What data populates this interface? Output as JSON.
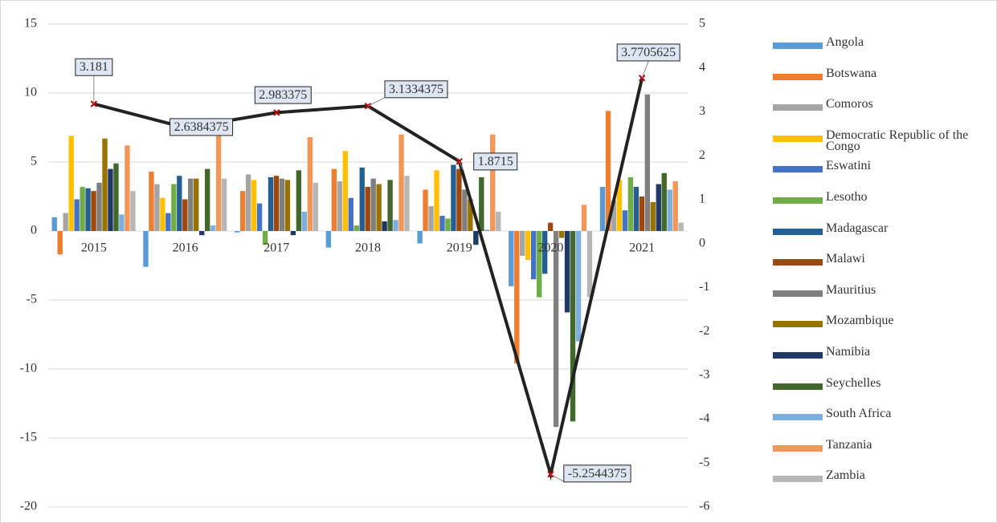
{
  "chart_data": {
    "type": "bar",
    "categories": [
      "2015",
      "2016",
      "2017",
      "2018",
      "2019",
      "2020",
      "2021"
    ],
    "ylim": [
      -20,
      15
    ],
    "yticks": [
      -20,
      -15,
      -10,
      -5,
      0,
      5,
      10,
      15
    ],
    "y2lim": [
      -6,
      5
    ],
    "y2ticks": [
      -6,
      -5,
      -4,
      -3,
      -2,
      -1,
      0,
      1,
      2,
      3,
      4,
      5
    ],
    "series": [
      {
        "name": "Angola",
        "color": "#5b9bd5",
        "values": [
          1.0,
          -2.6,
          -0.1,
          -1.2,
          -0.9,
          -4.0,
          3.2
        ]
      },
      {
        "name": "Botswana",
        "color": "#ed7d31",
        "values": [
          -1.7,
          4.3,
          2.9,
          4.5,
          3.0,
          -9.6,
          8.7
        ]
      },
      {
        "name": "Comoros",
        "color": "#a5a5a5",
        "values": [
          1.3,
          3.4,
          4.1,
          3.6,
          1.8,
          -1.8,
          2.2
        ]
      },
      {
        "name": "Democratic Republic of the Congo",
        "color": "#ffc000",
        "values": [
          6.9,
          2.4,
          3.7,
          5.8,
          4.4,
          -2.1,
          3.7
        ]
      },
      {
        "name": "Eswatini",
        "color": "#4472c4",
        "values": [
          2.3,
          1.3,
          2.0,
          2.4,
          1.1,
          -3.5,
          1.5
        ]
      },
      {
        "name": "Lesotho",
        "color": "#70ad47",
        "values": [
          3.2,
          3.4,
          -1.0,
          0.4,
          0.9,
          -4.8,
          3.9
        ]
      },
      {
        "name": "Madagascar",
        "color": "#255e91",
        "values": [
          3.1,
          4.0,
          3.9,
          4.6,
          4.8,
          -3.1,
          3.2
        ]
      },
      {
        "name": "Malawi",
        "color": "#9e480e",
        "values": [
          2.9,
          2.3,
          4.0,
          3.2,
          4.5,
          0.6,
          2.5
        ]
      },
      {
        "name": "Mauritius",
        "color": "#7f7f7f",
        "values": [
          3.5,
          3.8,
          3.8,
          3.8,
          3.0,
          -14.2,
          9.9
        ]
      },
      {
        "name": "Mozambique",
        "color": "#997300",
        "values": [
          6.7,
          3.8,
          3.7,
          3.4,
          2.3,
          -0.5,
          2.1
        ]
      },
      {
        "name": "Namibia",
        "color": "#203864",
        "values": [
          4.5,
          -0.3,
          -0.3,
          0.7,
          -1.0,
          -5.9,
          3.4
        ]
      },
      {
        "name": "Seychelles",
        "color": "#43682b",
        "values": [
          4.9,
          4.5,
          4.4,
          3.7,
          3.9,
          -13.8,
          4.2
        ]
      },
      {
        "name": "South Africa",
        "color": "#7cafdd",
        "values": [
          1.2,
          0.4,
          1.4,
          0.8,
          0.1,
          -8.0,
          3.0
        ]
      },
      {
        "name": "Tanzania",
        "color": "#f1975a",
        "values": [
          6.2,
          6.9,
          6.8,
          7.0,
          7.0,
          1.9,
          3.6
        ]
      },
      {
        "name": "Zambia",
        "color": "#b7b7b7",
        "values": [
          2.9,
          3.8,
          3.5,
          4.0,
          1.4,
          -4.8,
          0.6
        ]
      },
      {
        "type": "line",
        "axis": "y2",
        "color": "#222222",
        "marker_color": "#c00000",
        "values": [
          3.181,
          2.6384375,
          2.983375,
          3.1334375,
          1.8715,
          -5.2544375,
          3.7705625
        ]
      }
    ]
  }
}
